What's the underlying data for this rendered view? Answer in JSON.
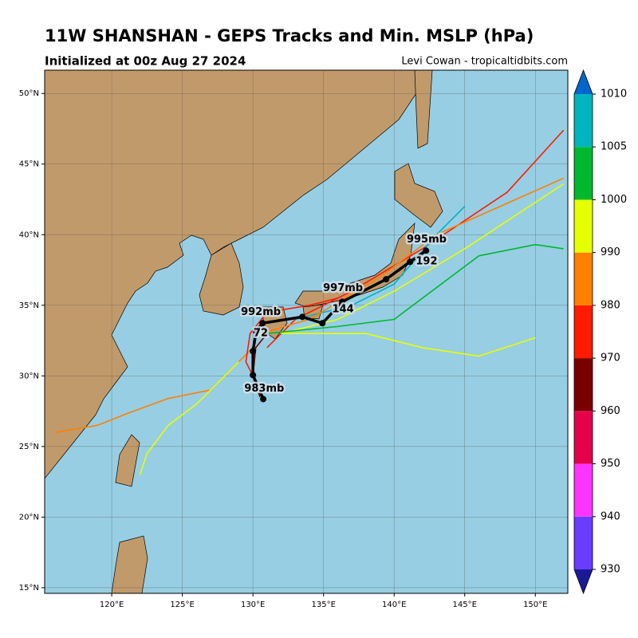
{
  "title": "11W SHANSHAN - GEPS Tracks and Min. MSLP (hPa)",
  "subtitle": "Initialized at 00z Aug 27 2024",
  "credit": "Levi Cowan - tropicaltidbits.com",
  "map": {
    "xlim": [
      115.25,
      152.3
    ],
    "ylim": [
      14.6,
      51.65
    ],
    "xticks": [
      {
        "value": 120,
        "label": "120°E"
      },
      {
        "value": 125,
        "label": "125°E"
      },
      {
        "value": 130,
        "label": "130°E"
      },
      {
        "value": 135,
        "label": "135°E"
      },
      {
        "value": 140,
        "label": "140°E"
      },
      {
        "value": 145,
        "label": "145°E"
      },
      {
        "value": 150,
        "label": "150°E"
      }
    ],
    "yticks": [
      {
        "value": 15,
        "label": "15°N"
      },
      {
        "value": 20,
        "label": "20°N"
      },
      {
        "value": 25,
        "label": "25°N"
      },
      {
        "value": 30,
        "label": "30°N"
      },
      {
        "value": 35,
        "label": "35°N"
      },
      {
        "value": 40,
        "label": "40°N"
      },
      {
        "value": 45,
        "label": "45°N"
      },
      {
        "value": 50,
        "label": "50°N"
      }
    ],
    "grid": true,
    "ocean_color": "#97cee3",
    "land_color": "#c19a6b",
    "members": [
      {
        "color": "#ff7f00",
        "lon": [
          130,
          127,
          124,
          121,
          119,
          116
        ],
        "lat": [
          32,
          29,
          28.4,
          27.3,
          26.5,
          26
        ]
      },
      {
        "color": "#e6ff00",
        "lon": [
          129,
          126,
          124,
          122.5,
          122
        ],
        "lat": [
          31,
          28,
          26.5,
          24.5,
          23
        ]
      },
      {
        "color": "#ff1a00",
        "lon": [
          131,
          133,
          137,
          142,
          148,
          152
        ],
        "lat": [
          32,
          34,
          36,
          39,
          43,
          47.4
        ]
      },
      {
        "color": "#e6ff00",
        "lon": [
          132,
          136,
          140,
          145,
          152
        ],
        "lat": [
          33,
          34,
          36,
          39,
          43.6
        ]
      },
      {
        "color": "#00b82e",
        "lon": [
          131,
          136,
          140,
          146,
          150,
          152
        ],
        "lat": [
          33,
          33.5,
          34,
          38.5,
          39.3,
          39
        ]
      },
      {
        "color": "#00b4c0",
        "lon": [
          133,
          137,
          140,
          143,
          145
        ],
        "lat": [
          34,
          35,
          36.5,
          40,
          42
        ]
      },
      {
        "color": "#e6ff00",
        "lon": [
          132,
          138,
          142,
          146,
          150
        ],
        "lat": [
          33,
          33,
          32,
          31.4,
          32.7
        ]
      },
      {
        "color": "#ff7f00",
        "lon": [
          130.5,
          134,
          139,
          143,
          152
        ],
        "lat": [
          33,
          34,
          37,
          40,
          44
        ]
      },
      {
        "color": "#ff1a00",
        "lon": [
          130.5,
          129.5,
          129.8,
          131,
          134,
          136
        ],
        "lat": [
          29,
          31,
          33,
          34.5,
          35,
          35.5
        ]
      },
      {
        "color": "#7a0000",
        "lon": [
          130.5,
          130,
          130.2,
          131
        ],
        "lat": [
          28.5,
          30,
          32,
          33
        ]
      }
    ],
    "mean_track": {
      "color": "#000000",
      "lon": [
        130.73,
        130,
        130,
        130.23,
        130.68,
        133.5,
        134.92,
        136.33,
        139.43,
        141.13,
        142.26
      ],
      "lat": [
        28.36,
        30.06,
        31.75,
        33.16,
        33.73,
        34.18,
        33.73,
        35.25,
        36.84,
        38.08,
        38.87
      ]
    },
    "labels": [
      {
        "text": "983mb",
        "lon": 130.8,
        "lat": 29.1
      },
      {
        "text": "992mb",
        "lon": 130.56,
        "lat": 34.5
      },
      {
        "text": "997mb",
        "lon": 136.38,
        "lat": 36.2
      },
      {
        "text": "995mb",
        "lon": 142.3,
        "lat": 39.66
      },
      {
        "text": "72",
        "lon": 130.56,
        "lat": 33.0
      },
      {
        "text": "144",
        "lon": 136.38,
        "lat": 34.7
      },
      {
        "text": "192",
        "lon": 142.3,
        "lat": 38.1
      }
    ]
  },
  "colorbar": {
    "levels": [
      930,
      940,
      950,
      960,
      970,
      980,
      990,
      1000,
      1005,
      1010
    ],
    "colors": [
      "#6a3cff",
      "#ff33ff",
      "#e6004c",
      "#7a0000",
      "#ff1a00",
      "#ff7f00",
      "#e6ff00",
      "#00b82e",
      "#00b4c0"
    ],
    "under_color": "#1a1a99",
    "over_color": "#0066cc"
  }
}
